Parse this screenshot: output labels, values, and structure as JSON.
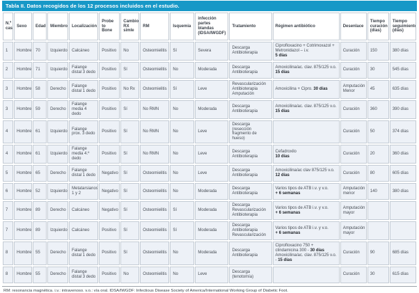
{
  "accent_color": "#1798c7",
  "title": "Tabla II. Datos recogidos de los 12 procesos incluidos en el estudio.",
  "footnote": "RM: resonancia magnética. i.v.: intravenoso. v.o.: vía oral. IDSA/IWGDF: Infectious Disease Society of America/International Working Group of Diabetic Foot.",
  "table": {
    "columns": [
      {
        "key": "caso",
        "label": "N.º caso"
      },
      {
        "key": "sexo",
        "label": "Sexo"
      },
      {
        "key": "edad",
        "label": "Edad"
      },
      {
        "key": "miembro",
        "label": "Miembro"
      },
      {
        "key": "localizacion",
        "label": "Localización"
      },
      {
        "key": "probe_to_bone",
        "label": "Probe to Bone"
      },
      {
        "key": "cambios_rx",
        "label": "Cambios RX simle"
      },
      {
        "key": "rm",
        "label": "RM"
      },
      {
        "key": "isquemia",
        "label": "Isquemia"
      },
      {
        "key": "infeccion",
        "label": "infección partes blandas (IDSA/IWGDF)"
      },
      {
        "key": "tratamiento",
        "label": "Tratamiento"
      },
      {
        "key": "regimen",
        "label": "Régimen antibiótico"
      },
      {
        "key": "desenlace",
        "label": "Desenlace"
      },
      {
        "key": "tiempo_curacion",
        "label": "Tiempo curación (días)"
      },
      {
        "key": "tiempo_seguimiento",
        "label": "Tiempo seguimiento (días)"
      }
    ],
    "rows": [
      {
        "caso": "1",
        "sexo": "Hombre",
        "edad": "70",
        "miembro": "Izquierdo",
        "localizacion": "Calcáneo",
        "probe_to_bone": "Positivo",
        "cambios_rx": "No",
        "rm": "Osteomielitis",
        "isquemia": "Sí",
        "infeccion": "Severa",
        "tratamiento": "Descarga\nAntibioterapia",
        "regimen": [
          {
            "t": "Ciprofloxacino + Cotrimoxazol + Metronidazol – i.v.\n",
            "b": false
          },
          {
            "t": "5 días",
            "b": true
          }
        ],
        "desenlace": "Curación",
        "tiempo_curacion": "150",
        "tiempo_seguimiento": "380 días"
      },
      {
        "caso": "2",
        "sexo": "Hombre",
        "edad": "71",
        "miembro": "Izquierdo",
        "localizacion": "Falange distal 3 dedo",
        "probe_to_bone": "Positivo",
        "cambios_rx": "Sí",
        "rm": "Osteomielitis",
        "isquemia": "No",
        "infeccion": "Moderada",
        "tratamiento": "Descarga\nAntibioterapia",
        "regimen": [
          {
            "t": "Amoxicilina/ac. clav. 875/125 v.o.\n",
            "b": false
          },
          {
            "t": "15 días",
            "b": true
          }
        ],
        "desenlace": "Curación",
        "tiempo_curacion": "30",
        "tiempo_seguimiento": "545 días"
      },
      {
        "caso": "3",
        "sexo": "Hombre",
        "edad": "58",
        "miembro": "Derecho",
        "localizacion": "Falange distal 1 dedo",
        "probe_to_bone": "Positivo",
        "cambios_rx": "No Rx",
        "rm": "Osteomielitis",
        "isquemia": "Sí",
        "infeccion": "Leve",
        "tratamiento": "Revascularización\nAntibioterapia\nAmputación",
        "regimen": [
          {
            "t": "Amoxicilina + Cipro. ",
            "b": false
          },
          {
            "t": "30 días",
            "b": true
          }
        ],
        "desenlace": "Amputación Menor",
        "tiempo_curacion": "45",
        "tiempo_seguimiento": "635 días"
      },
      {
        "caso": "3",
        "sexo": "Hombre",
        "edad": "59",
        "miembro": "Derecho",
        "localizacion": "Falange media 4 dedo",
        "probe_to_bone": "Positivo",
        "cambios_rx": "Sí",
        "rm": "No RMN",
        "isquemia": "No",
        "infeccion": "Moderada",
        "tratamiento": "Descarga\nAntibioterapia",
        "regimen": [
          {
            "t": "Amoxicilina/ac. clav. 875/125 v.o.\n",
            "b": false
          },
          {
            "t": "15 días",
            "b": true
          }
        ],
        "desenlace": "Curación",
        "tiempo_curacion": "360",
        "tiempo_seguimiento": "390 días"
      },
      {
        "caso": "4",
        "sexo": "Hombre",
        "edad": "61",
        "miembro": "Izquierdo",
        "localizacion": "Falange prox. 3 dedo",
        "probe_to_bone": "Positivo",
        "cambios_rx": "Sí",
        "rm": "No RMN",
        "isquemia": "No",
        "infeccion": "Leve",
        "tratamiento": "Descarga (resección fragmento de hueso)",
        "regimen": [],
        "desenlace": "Curación",
        "tiempo_curacion": "50",
        "tiempo_seguimiento": "374 días"
      },
      {
        "caso": "4",
        "sexo": "Hombre",
        "edad": "61",
        "miembro": "Izquierdo",
        "localizacion": "Falange media 4.º dedo",
        "probe_to_bone": "Positivo",
        "cambios_rx": "Sí",
        "rm": "No RMN",
        "isquemia": "No",
        "infeccion": "Leve",
        "tratamiento": "Descarga\nAntibioterapia",
        "regimen": [
          {
            "t": "Cefadroxilo\n",
            "b": false
          },
          {
            "t": "10 días",
            "b": true
          }
        ],
        "desenlace": "Curación",
        "tiempo_curacion": "20",
        "tiempo_seguimiento": "360 días"
      },
      {
        "caso": "5",
        "sexo": "Hombre",
        "edad": "65",
        "miembro": "Derecho",
        "localizacion": "Falange distal 1 dedo",
        "probe_to_bone": "Negativo",
        "cambios_rx": "Sí",
        "rm": "Osteomielitis",
        "isquemia": "No",
        "infeccion": "Leve",
        "tratamiento": "Descarga\nAntibioterapia",
        "regimen": [
          {
            "t": "Amoxicilina/ac clav 875/125 v.o.\n",
            "b": false
          },
          {
            "t": "12 días",
            "b": true
          }
        ],
        "desenlace": "Curación",
        "tiempo_curacion": "80",
        "tiempo_seguimiento": "605 días"
      },
      {
        "caso": "6",
        "sexo": "Hombre",
        "edad": "52",
        "miembro": "Izquierdo",
        "localizacion": "Metatarsianos 1 y 2",
        "probe_to_bone": "Negativo",
        "cambios_rx": "Sí",
        "rm": "Osteomielitis",
        "isquemia": "No",
        "infeccion": "Moderada",
        "tratamiento": "Descarga\nAntibioterapia",
        "regimen": [
          {
            "t": "Varios tipos de ATB i.v. y v.o.\n",
            "b": false
          },
          {
            "t": "+ 6 semanas",
            "b": true
          }
        ],
        "desenlace": "Amputación menor",
        "tiempo_curacion": "140",
        "tiempo_seguimiento": "380 días"
      },
      {
        "caso": "7",
        "sexo": "Hombre",
        "edad": "89",
        "miembro": "Derecho",
        "localizacion": "Calcáneo",
        "probe_to_bone": "Negativo",
        "cambios_rx": "Sí",
        "rm": "Osteomielitis",
        "isquemia": "Sí",
        "infeccion": "Moderada",
        "tratamiento": "Descarga\nRevascularización\nAntibioterapia",
        "regimen": [
          {
            "t": "Varios tipos de ATB i.v. y v.o.\n",
            "b": false
          },
          {
            "t": "+ 6 semanas",
            "b": true
          }
        ],
        "desenlace": "Amputación mayor",
        "tiempo_curacion": "",
        "tiempo_seguimiento": ""
      },
      {
        "caso": "7",
        "sexo": "Hombre",
        "edad": "89",
        "miembro": "Izquierdo",
        "localizacion": "Calcáneo",
        "probe_to_bone": "Positivo",
        "cambios_rx": "Sí",
        "rm": "Osteomielitis",
        "isquemia": "Sí",
        "infeccion": "Moderada",
        "tratamiento": "Descarga\nAntibioterapia\nRevascularización",
        "regimen": [
          {
            "t": "Varios tipos de ATB i.v. y v.o.\n",
            "b": false
          },
          {
            "t": "+ 6 semanas",
            "b": true
          }
        ],
        "desenlace": "Amputación mayor",
        "tiempo_curacion": "",
        "tiempo_seguimiento": ""
      },
      {
        "caso": "8",
        "sexo": "Hombre",
        "edad": "55",
        "miembro": "Derecho",
        "localizacion": "Falange distal 1 dedo",
        "probe_to_bone": "Positivo",
        "cambios_rx": "Sí",
        "rm": "Osteomielitis",
        "isquemia": "No",
        "infeccion": "Moderada",
        "tratamiento": "Descarga\nAntibioterapia",
        "regimen": [
          {
            "t": "Ciprofloxacino 750 + clindamicina 300 - ",
            "b": false
          },
          {
            "t": "30 días",
            "b": true
          },
          {
            "t": " Amoxicilina/ac. clav. 875/125 v.o. - ",
            "b": false
          },
          {
            "t": "15 días",
            "b": true
          }
        ],
        "desenlace": "Curación",
        "tiempo_curacion": "90",
        "tiempo_seguimiento": "685 días"
      },
      {
        "caso": "8",
        "sexo": "Hombre",
        "edad": "55",
        "miembro": "Derecho",
        "localizacion": "Falange distal 3 dedo",
        "probe_to_bone": "Positivo",
        "cambios_rx": "No",
        "rm": "Osteomielitis",
        "isquemia": "No",
        "infeccion": "Leve",
        "tratamiento": "Descarga (tenotomía)",
        "regimen": [],
        "desenlace": "Curación",
        "tiempo_curacion": "30",
        "tiempo_seguimiento": "615 días"
      }
    ]
  }
}
